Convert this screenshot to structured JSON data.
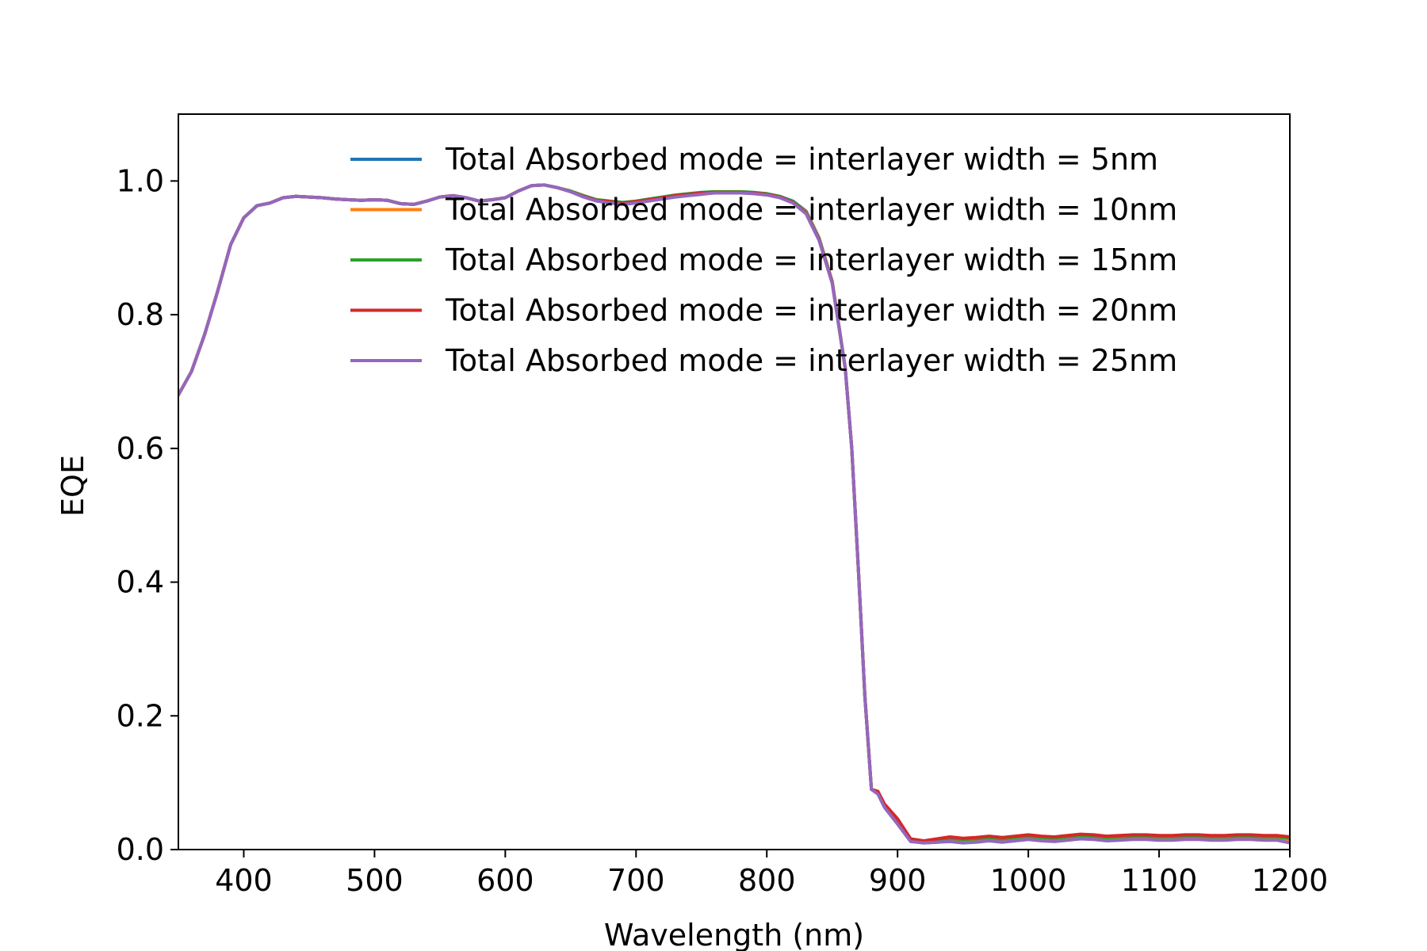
{
  "chart_data": {
    "type": "line",
    "title": "",
    "xlabel": "Wavelength (nm)",
    "ylabel": "EQE",
    "xlim": [
      350,
      1200
    ],
    "ylim": [
      0,
      1.1
    ],
    "xticks": [
      400,
      500,
      600,
      700,
      800,
      900,
      1000,
      1100,
      1200
    ],
    "xtick_labels": [
      "400",
      "500",
      "600",
      "700",
      "800",
      "900",
      "1000",
      "1100",
      "1200"
    ],
    "yticks": [
      0.0,
      0.2,
      0.4,
      0.6,
      0.8,
      1.0
    ],
    "ytick_labels": [
      "0.0",
      "0.2",
      "0.4",
      "0.6",
      "0.8",
      "1.0"
    ],
    "grid": false,
    "legend_position": "top-right",
    "x": [
      350,
      360,
      370,
      380,
      390,
      400,
      410,
      420,
      430,
      440,
      450,
      460,
      470,
      480,
      490,
      500,
      510,
      520,
      530,
      540,
      550,
      560,
      570,
      580,
      590,
      600,
      610,
      620,
      630,
      640,
      650,
      660,
      670,
      680,
      690,
      700,
      710,
      720,
      730,
      740,
      750,
      760,
      770,
      780,
      790,
      800,
      810,
      820,
      830,
      840,
      850,
      860,
      865,
      870,
      875,
      880,
      885,
      890,
      900,
      910,
      920,
      930,
      940,
      950,
      960,
      970,
      980,
      990,
      1000,
      1010,
      1020,
      1030,
      1040,
      1050,
      1060,
      1070,
      1080,
      1090,
      1100,
      1110,
      1120,
      1130,
      1140,
      1150,
      1160,
      1170,
      1180,
      1190,
      1200
    ],
    "series": [
      {
        "name": "Total Absorbed mode = interlayer width = 5nm",
        "color": "#1f77b4",
        "values": [
          0.68,
          0.715,
          0.77,
          0.835,
          0.905,
          0.945,
          0.963,
          0.967,
          0.975,
          0.977,
          0.976,
          0.975,
          0.973,
          0.972,
          0.971,
          0.972,
          0.971,
          0.966,
          0.965,
          0.97,
          0.976,
          0.978,
          0.975,
          0.97,
          0.972,
          0.975,
          0.985,
          0.993,
          0.994,
          0.99,
          0.984,
          0.976,
          0.97,
          0.968,
          0.966,
          0.968,
          0.971,
          0.974,
          0.977,
          0.979,
          0.981,
          0.983,
          0.983,
          0.983,
          0.982,
          0.981,
          0.977,
          0.97,
          0.955,
          0.915,
          0.85,
          0.72,
          0.6,
          0.42,
          0.23,
          0.09,
          0.085,
          0.065,
          0.04,
          0.013,
          0.01,
          0.011,
          0.013,
          0.011,
          0.012,
          0.014,
          0.012,
          0.014,
          0.016,
          0.014,
          0.013,
          0.015,
          0.017,
          0.016,
          0.014,
          0.015,
          0.016,
          0.016,
          0.015,
          0.015,
          0.016,
          0.016,
          0.015,
          0.015,
          0.016,
          0.016,
          0.015,
          0.015,
          0.013
        ]
      },
      {
        "name": "Total Absorbed mode = interlayer width = 10nm",
        "color": "#ff7f0e",
        "values": [
          0.68,
          0.715,
          0.77,
          0.835,
          0.905,
          0.945,
          0.963,
          0.967,
          0.975,
          0.977,
          0.976,
          0.975,
          0.973,
          0.972,
          0.971,
          0.972,
          0.971,
          0.966,
          0.965,
          0.97,
          0.976,
          0.978,
          0.975,
          0.97,
          0.972,
          0.975,
          0.985,
          0.993,
          0.994,
          0.99,
          0.984,
          0.977,
          0.971,
          0.969,
          0.967,
          0.969,
          0.972,
          0.975,
          0.978,
          0.98,
          0.982,
          0.983,
          0.983,
          0.983,
          0.982,
          0.98,
          0.976,
          0.969,
          0.954,
          0.914,
          0.85,
          0.72,
          0.6,
          0.42,
          0.23,
          0.09,
          0.085,
          0.066,
          0.042,
          0.014,
          0.011,
          0.013,
          0.015,
          0.013,
          0.014,
          0.016,
          0.014,
          0.016,
          0.018,
          0.016,
          0.015,
          0.017,
          0.019,
          0.018,
          0.016,
          0.017,
          0.018,
          0.018,
          0.017,
          0.017,
          0.018,
          0.018,
          0.017,
          0.017,
          0.018,
          0.018,
          0.017,
          0.017,
          0.015
        ]
      },
      {
        "name": "Total Absorbed mode = interlayer width = 15nm",
        "color": "#2ca02c",
        "values": [
          0.68,
          0.715,
          0.77,
          0.835,
          0.905,
          0.945,
          0.963,
          0.967,
          0.975,
          0.977,
          0.976,
          0.975,
          0.973,
          0.972,
          0.971,
          0.972,
          0.971,
          0.966,
          0.965,
          0.97,
          0.976,
          0.978,
          0.975,
          0.97,
          0.972,
          0.975,
          0.985,
          0.993,
          0.994,
          0.99,
          0.985,
          0.978,
          0.972,
          0.97,
          0.968,
          0.97,
          0.973,
          0.976,
          0.979,
          0.981,
          0.983,
          0.984,
          0.984,
          0.984,
          0.983,
          0.981,
          0.977,
          0.969,
          0.953,
          0.913,
          0.849,
          0.72,
          0.6,
          0.42,
          0.23,
          0.09,
          0.086,
          0.067,
          0.044,
          0.015,
          0.012,
          0.015,
          0.017,
          0.015,
          0.016,
          0.018,
          0.016,
          0.018,
          0.02,
          0.018,
          0.017,
          0.019,
          0.021,
          0.02,
          0.018,
          0.019,
          0.02,
          0.02,
          0.019,
          0.019,
          0.02,
          0.02,
          0.019,
          0.019,
          0.02,
          0.02,
          0.019,
          0.019,
          0.017
        ]
      },
      {
        "name": "Total Absorbed mode = interlayer width = 20nm",
        "color": "#d62728",
        "values": [
          0.68,
          0.715,
          0.77,
          0.835,
          0.905,
          0.945,
          0.963,
          0.967,
          0.975,
          0.977,
          0.976,
          0.975,
          0.973,
          0.972,
          0.971,
          0.972,
          0.971,
          0.966,
          0.965,
          0.97,
          0.976,
          0.978,
          0.975,
          0.97,
          0.972,
          0.975,
          0.985,
          0.993,
          0.994,
          0.99,
          0.984,
          0.977,
          0.971,
          0.969,
          0.967,
          0.969,
          0.972,
          0.975,
          0.978,
          0.98,
          0.982,
          0.983,
          0.983,
          0.983,
          0.982,
          0.98,
          0.976,
          0.968,
          0.952,
          0.912,
          0.848,
          0.72,
          0.6,
          0.42,
          0.23,
          0.09,
          0.087,
          0.068,
          0.046,
          0.016,
          0.013,
          0.016,
          0.019,
          0.017,
          0.018,
          0.02,
          0.018,
          0.02,
          0.022,
          0.02,
          0.019,
          0.021,
          0.023,
          0.022,
          0.02,
          0.021,
          0.022,
          0.022,
          0.021,
          0.021,
          0.022,
          0.022,
          0.021,
          0.021,
          0.022,
          0.022,
          0.021,
          0.021,
          0.019
        ]
      },
      {
        "name": "Total Absorbed mode = interlayer width = 25nm",
        "color": "#9467bd",
        "values": [
          0.68,
          0.715,
          0.77,
          0.835,
          0.905,
          0.945,
          0.963,
          0.967,
          0.975,
          0.977,
          0.976,
          0.975,
          0.973,
          0.972,
          0.971,
          0.972,
          0.971,
          0.966,
          0.965,
          0.97,
          0.976,
          0.978,
          0.975,
          0.97,
          0.972,
          0.975,
          0.985,
          0.993,
          0.994,
          0.99,
          0.984,
          0.976,
          0.97,
          0.967,
          0.965,
          0.967,
          0.97,
          0.973,
          0.976,
          0.978,
          0.98,
          0.982,
          0.982,
          0.982,
          0.981,
          0.979,
          0.975,
          0.967,
          0.951,
          0.911,
          0.847,
          0.72,
          0.6,
          0.42,
          0.23,
          0.09,
          0.083,
          0.063,
          0.038,
          0.012,
          0.01,
          0.011,
          0.012,
          0.01,
          0.011,
          0.013,
          0.011,
          0.013,
          0.015,
          0.013,
          0.012,
          0.014,
          0.016,
          0.015,
          0.013,
          0.014,
          0.015,
          0.015,
          0.014,
          0.014,
          0.015,
          0.015,
          0.014,
          0.014,
          0.015,
          0.015,
          0.014,
          0.014,
          0.01
        ]
      }
    ]
  }
}
